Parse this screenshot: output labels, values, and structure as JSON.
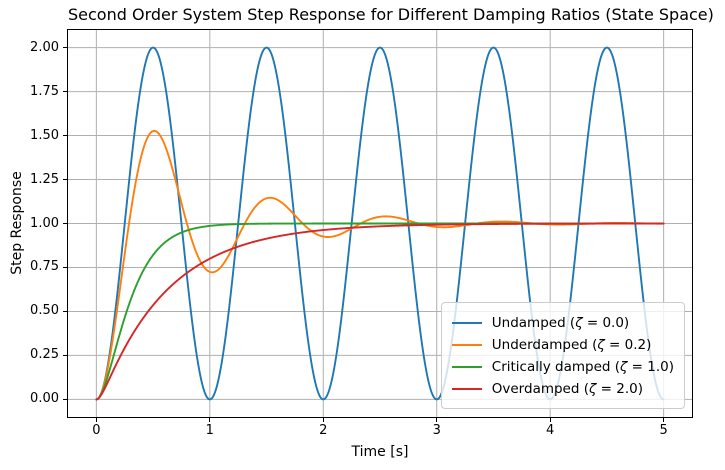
{
  "chart_data": {
    "type": "line",
    "title": "Second Order System Step Response for Different Damping Ratios (State Space)",
    "xlabel": "Time [s]",
    "ylabel": "Step Response",
    "xlim": [
      -0.25,
      5.25
    ],
    "ylim": [
      -0.1,
      2.1
    ],
    "x_tick_values": [
      0,
      1,
      2,
      3,
      4,
      5
    ],
    "x_tick_labels": [
      "0",
      "1",
      "2",
      "3",
      "4",
      "5"
    ],
    "y_tick_values": [
      0.0,
      0.25,
      0.5,
      0.75,
      1.0,
      1.25,
      1.5,
      1.75,
      2.0
    ],
    "y_tick_labels": [
      "0.00",
      "0.25",
      "0.50",
      "0.75",
      "1.00",
      "1.25",
      "1.50",
      "1.75",
      "2.00"
    ],
    "grid": true,
    "grid_color": "#b0b0b0",
    "spine_color": "#000000",
    "legend_position": "lower right",
    "omega_n": 6.283185307179586,
    "t_range": [
      0,
      5
    ],
    "sample_times": [
      0,
      0.25,
      0.5,
      0.75,
      1.0,
      1.25,
      1.5,
      1.75,
      2.0,
      2.25,
      2.5,
      2.75,
      3.0,
      3.25,
      3.5,
      3.75,
      4.0,
      4.25,
      4.5,
      4.75,
      5.0
    ],
    "series": [
      {
        "name": "Undamped",
        "zeta": 0.0,
        "color": "#1f77b4",
        "label": "Undamped (ζ = 0.0)",
        "label_pre": "Undamped (",
        "zeta_symbol": "ζ",
        "label_post": " = 0.0)",
        "sample_values": [
          0,
          1,
          2,
          1,
          0,
          1,
          2,
          1,
          0,
          1,
          2,
          1,
          0,
          1,
          2,
          1,
          0,
          1,
          2,
          1,
          0
        ]
      },
      {
        "name": "Underdamped",
        "zeta": 0.2,
        "color": "#ff7f0e",
        "label": "Underdamped (ζ = 0.2)",
        "label_pre": "Underdamped (",
        "zeta_symbol": "ζ",
        "label_post": " = 0.2)",
        "sample_values": [
          0,
          0.828,
          1.526,
          1.116,
          0.725,
          0.925,
          1.143,
          1.046,
          0.926,
          0.972,
          1.038,
          1.017,
          0.98,
          0.99,
          1.01,
          1.006,
          0.995,
          0.997,
          1.003,
          1.002,
          0.999
        ]
      },
      {
        "name": "Critically damped",
        "zeta": 1.0,
        "color": "#2ca02c",
        "label": "Critically damped (ζ = 1.0)",
        "label_pre": "Critically damped (",
        "zeta_symbol": "ζ",
        "label_post": " = 1.0)",
        "sample_values": [
          0,
          0.466,
          0.821,
          0.949,
          0.986,
          0.997,
          0.999,
          1.0,
          1.0,
          1.0,
          1.0,
          1.0,
          1.0,
          1.0,
          1.0,
          1.0,
          1.0,
          1.0,
          1.0,
          1.0,
          1.0
        ]
      },
      {
        "name": "Overdamped",
        "zeta": 2.0,
        "color": "#d62728",
        "label": "Overdamped (ζ = 2.0)",
        "label_pre": "Overdamped (",
        "zeta_symbol": "ζ",
        "label_post": " = 2.0)",
        "sample_values": [
          0,
          0.293,
          0.536,
          0.695,
          0.8,
          0.869,
          0.914,
          0.943,
          0.963,
          0.976,
          0.984,
          0.99,
          0.993,
          0.996,
          0.997,
          0.998,
          0.999,
          0.999,
          1.0,
          1.0,
          1.0
        ]
      }
    ]
  }
}
